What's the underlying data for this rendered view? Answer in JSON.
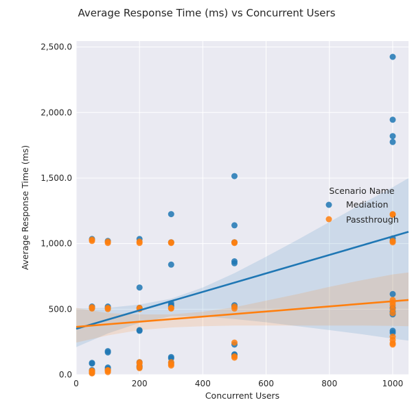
{
  "chart_data": {
    "type": "scatter",
    "title": "Average Response Time (ms) vs Concurrent Users",
    "xlabel": "Concurrent Users",
    "ylabel": "Average Response Time (ms)",
    "xlim": [
      0,
      1050
    ],
    "ylim": [
      0,
      2545
    ],
    "x_ticks": [
      0,
      200,
      400,
      600,
      800,
      1000
    ],
    "y_ticks": [
      0,
      500,
      1000,
      1500,
      2000,
      2500
    ],
    "x_tick_labels": [
      "0",
      "200",
      "400",
      "600",
      "800",
      "1000"
    ],
    "y_tick_labels": [
      "0.0",
      "500.0",
      "1,000.0",
      "1,500.0",
      "2,000.0",
      "2,500.0"
    ],
    "grid": true,
    "legend": {
      "title": "Scenario Name",
      "placement": "right"
    },
    "colors": {
      "background": "#eaeaf2",
      "grid": "#ffffff"
    },
    "series": [
      {
        "name": "Mediation",
        "color": "#1f77b4",
        "points": [
          [
            50,
            1035
          ],
          [
            50,
            520
          ],
          [
            50,
            510
          ],
          [
            50,
            90
          ],
          [
            50,
            85
          ],
          [
            50,
            35
          ],
          [
            50,
            25
          ],
          [
            50,
            15
          ],
          [
            100,
            1020
          ],
          [
            100,
            520
          ],
          [
            100,
            510
          ],
          [
            100,
            180
          ],
          [
            100,
            170
          ],
          [
            100,
            55
          ],
          [
            100,
            45
          ],
          [
            100,
            35
          ],
          [
            200,
            1035
          ],
          [
            200,
            665
          ],
          [
            200,
            510
          ],
          [
            200,
            340
          ],
          [
            200,
            335
          ],
          [
            200,
            95
          ],
          [
            200,
            65
          ],
          [
            200,
            55
          ],
          [
            300,
            1225
          ],
          [
            300,
            1010
          ],
          [
            300,
            840
          ],
          [
            300,
            545
          ],
          [
            300,
            530
          ],
          [
            300,
            520
          ],
          [
            300,
            135
          ],
          [
            300,
            125
          ],
          [
            300,
            90
          ],
          [
            500,
            1515
          ],
          [
            500,
            1140
          ],
          [
            500,
            1010
          ],
          [
            500,
            865
          ],
          [
            500,
            850
          ],
          [
            500,
            530
          ],
          [
            500,
            520
          ],
          [
            500,
            230
          ],
          [
            500,
            155
          ],
          [
            500,
            150
          ],
          [
            1000,
            2425
          ],
          [
            1000,
            1945
          ],
          [
            1000,
            1820
          ],
          [
            1000,
            1775
          ],
          [
            1000,
            1040
          ],
          [
            1000,
            1020
          ],
          [
            1000,
            615
          ],
          [
            1000,
            510
          ],
          [
            1000,
            480
          ],
          [
            1000,
            460
          ],
          [
            1000,
            335
          ],
          [
            1000,
            320
          ]
        ],
        "regression": {
          "x": [
            0,
            1050
          ],
          "y": [
            350,
            1090
          ]
        },
        "ci": {
          "x": [
            0,
            100,
            200,
            300,
            400,
            500,
            600,
            700,
            800,
            900,
            1000,
            1050
          ],
          "lower": [
            210,
            315,
            395,
            445,
            445,
            425,
            400,
            370,
            340,
            310,
            275,
            260
          ],
          "upper": [
            505,
            510,
            535,
            580,
            665,
            775,
            900,
            1030,
            1165,
            1300,
            1430,
            1500
          ]
        }
      },
      {
        "name": "Passthrough",
        "color": "#ff7f0e",
        "points": [
          [
            50,
            1030
          ],
          [
            50,
            1020
          ],
          [
            50,
            515
          ],
          [
            50,
            505
          ],
          [
            50,
            30
          ],
          [
            50,
            25
          ],
          [
            50,
            18
          ],
          [
            50,
            10
          ],
          [
            100,
            1015
          ],
          [
            100,
            1005
          ],
          [
            100,
            510
          ],
          [
            100,
            500
          ],
          [
            100,
            35
          ],
          [
            100,
            30
          ],
          [
            100,
            20
          ],
          [
            200,
            1015
          ],
          [
            200,
            1005
          ],
          [
            200,
            510
          ],
          [
            200,
            500
          ],
          [
            200,
            95
          ],
          [
            200,
            85
          ],
          [
            200,
            60
          ],
          [
            200,
            50
          ],
          [
            300,
            1010
          ],
          [
            300,
            1005
          ],
          [
            300,
            510
          ],
          [
            300,
            505
          ],
          [
            300,
            95
          ],
          [
            300,
            80
          ],
          [
            300,
            70
          ],
          [
            500,
            1010
          ],
          [
            500,
            1005
          ],
          [
            500,
            520
          ],
          [
            500,
            505
          ],
          [
            500,
            245
          ],
          [
            500,
            140
          ],
          [
            500,
            130
          ],
          [
            1000,
            1225
          ],
          [
            1000,
            1220
          ],
          [
            1000,
            1020
          ],
          [
            1000,
            1010
          ],
          [
            1000,
            570
          ],
          [
            1000,
            550
          ],
          [
            1000,
            530
          ],
          [
            1000,
            500
          ],
          [
            1000,
            470
          ],
          [
            1000,
            290
          ],
          [
            1000,
            265
          ],
          [
            1000,
            240
          ],
          [
            1000,
            230
          ]
        ],
        "regression": {
          "x": [
            0,
            1050
          ],
          "y": [
            365,
            570
          ]
        },
        "ci": {
          "x": [
            0,
            100,
            200,
            300,
            400,
            500,
            600,
            700,
            800,
            900,
            1000,
            1050
          ],
          "lower": [
            245,
            300,
            340,
            360,
            370,
            375,
            375,
            375,
            375,
            375,
            372,
            370
          ],
          "upper": [
            510,
            470,
            460,
            460,
            480,
            515,
            565,
            615,
            670,
            720,
            765,
            780
          ]
        }
      }
    ]
  }
}
